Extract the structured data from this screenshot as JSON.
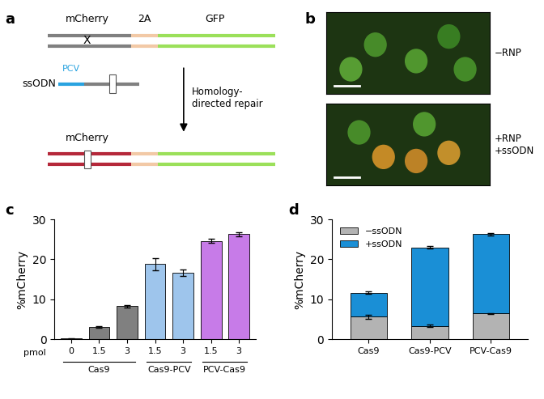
{
  "panel_labels": [
    "a",
    "b",
    "c",
    "d"
  ],
  "diagram": {
    "reporter": [
      "mCherry",
      "2A",
      "GFP"
    ],
    "mutation": "X",
    "donor": "ssODN",
    "tag": "PCV",
    "process": "Homology-\ndirected repair"
  },
  "images": {
    "labels": [
      "−RNP",
      "+RNP\n+ssODN"
    ]
  },
  "chart_data": [
    {
      "type": "bar",
      "y_label": "%mCherry",
      "x_tick_title": "pmol",
      "categories": [
        "0",
        "1.5",
        "3",
        "1.5",
        "3",
        "1.5",
        "3"
      ],
      "groups": [
        "Cas9",
        "Cas9",
        "Cas9",
        "Cas9-PCV",
        "Cas9-PCV",
        "PCV-Cas9",
        "PCV-Cas9"
      ],
      "values": [
        0.2,
        3.0,
        8.3,
        18.8,
        16.6,
        24.6,
        26.3
      ],
      "errors": [
        0.1,
        0.2,
        0.3,
        1.5,
        0.8,
        0.5,
        0.5
      ],
      "colors": [
        "#808080",
        "#808080",
        "#808080",
        "#9ec5ec",
        "#9ec5ec",
        "#c77be8",
        "#c77be8"
      ],
      "ylim": [
        0,
        30
      ],
      "yticks": [
        0,
        10,
        20,
        30
      ]
    },
    {
      "type": "bar",
      "stacked": true,
      "y_label": "%mCherry",
      "categories": [
        "Cas9",
        "Cas9-PCV",
        "PCV-Cas9"
      ],
      "series": [
        {
          "name": "−ssODN",
          "color": "#b3b3b3",
          "values": [
            5.6,
            3.3,
            6.4
          ],
          "errors": [
            0.5,
            0.3,
            0.2
          ]
        },
        {
          "name": "+ssODN",
          "color": "#1a8fd6",
          "values": [
            6.0,
            19.7,
            19.9
          ],
          "errors": [
            0.3,
            0.3,
            0.3
          ]
        }
      ],
      "legend": "upper left",
      "ylim": [
        0,
        30
      ],
      "yticks": [
        0,
        10,
        20,
        30
      ]
    }
  ]
}
